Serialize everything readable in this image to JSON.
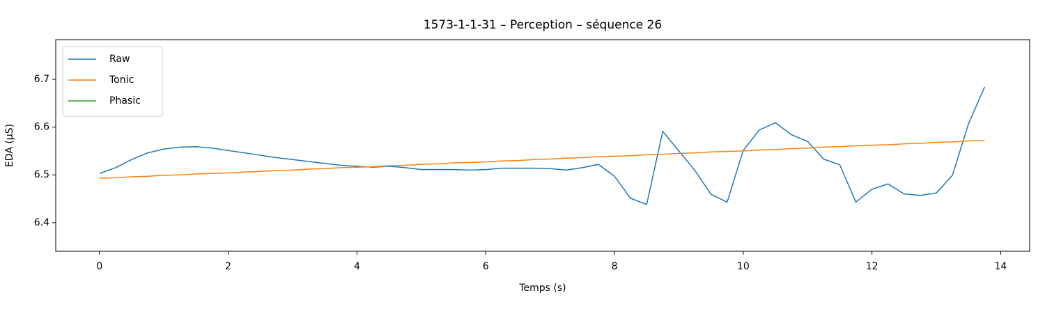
{
  "chart_data": {
    "type": "line",
    "title": "1573-1-1-31 – Perception – séquence 26",
    "xlabel": "Temps (s)",
    "ylabel": "EDA (µS)",
    "x": [
      0,
      0.25,
      0.5,
      0.75,
      1,
      1.25,
      1.5,
      1.75,
      2,
      2.25,
      2.5,
      2.75,
      3,
      3.25,
      3.5,
      3.75,
      4,
      4.25,
      4.5,
      4.75,
      5,
      5.25,
      5.5,
      5.75,
      6,
      6.25,
      6.5,
      6.75,
      7,
      7.25,
      7.5,
      7.75,
      8,
      8.25,
      8.5,
      8.75,
      9,
      9.25,
      9.5,
      9.75,
      10,
      10.25,
      10.5,
      10.75,
      11,
      11.25,
      11.5,
      11.75,
      12,
      12.25,
      12.5,
      12.75,
      13,
      13.25,
      13.5,
      13.75
    ],
    "series": [
      {
        "name": "Raw",
        "color": "#1f77b4",
        "values": [
          6.503,
          6.515,
          6.532,
          6.546,
          6.554,
          6.558,
          6.559,
          6.556,
          6.551,
          6.546,
          6.541,
          6.536,
          6.532,
          6.528,
          6.524,
          6.52,
          6.518,
          6.516,
          6.518,
          6.515,
          6.511,
          6.511,
          6.511,
          6.51,
          6.511,
          6.514,
          6.514,
          6.514,
          6.513,
          6.51,
          6.515,
          6.522,
          6.497,
          6.451,
          6.438,
          6.591,
          6.55,
          6.509,
          6.459,
          6.443,
          6.551,
          6.594,
          6.609,
          6.584,
          6.57,
          6.533,
          6.521,
          6.443,
          6.47,
          6.481,
          6.46,
          6.457,
          6.462,
          6.499,
          6.607,
          6.684
        ]
      },
      {
        "name": "Tonic",
        "color": "#ff7f0e",
        "values": [
          6.493,
          6.494,
          6.496,
          6.497,
          6.499,
          6.5,
          6.502,
          6.503,
          6.504,
          6.506,
          6.507,
          6.509,
          6.51,
          6.512,
          6.513,
          6.515,
          6.516,
          6.517,
          6.519,
          6.52,
          6.522,
          6.523,
          6.525,
          6.526,
          6.527,
          6.529,
          6.53,
          6.532,
          6.533,
          6.535,
          6.536,
          6.538,
          6.539,
          6.54,
          6.542,
          6.543,
          6.545,
          6.546,
          6.548,
          6.549,
          6.55,
          6.552,
          6.553,
          6.555,
          6.556,
          6.558,
          6.559,
          6.561,
          6.562,
          6.563,
          6.565,
          6.566,
          6.568,
          6.569,
          6.571,
          6.572
        ]
      },
      {
        "name": "Phasic",
        "color": "#2ca02c",
        "values": [
          null,
          null,
          null,
          null,
          null,
          null,
          null,
          null,
          null,
          null,
          null,
          null,
          null,
          null,
          null,
          null,
          null,
          null,
          null,
          null,
          null,
          null,
          null,
          null,
          null,
          null,
          null,
          null,
          null,
          null,
          null,
          null,
          null,
          null,
          null,
          null,
          null,
          null,
          null,
          null,
          null,
          null,
          null,
          null,
          null,
          null,
          null,
          null,
          null,
          null,
          null,
          null,
          null,
          null,
          null,
          null
        ]
      }
    ],
    "xlim": [
      -0.68,
      14.45
    ],
    "ylim": [
      6.34,
      6.783
    ],
    "xticks": [
      0,
      2,
      4,
      6,
      8,
      10,
      12,
      14
    ],
    "yticks": [
      6.4,
      6.5,
      6.6,
      6.7
    ],
    "legend": "upper left"
  }
}
